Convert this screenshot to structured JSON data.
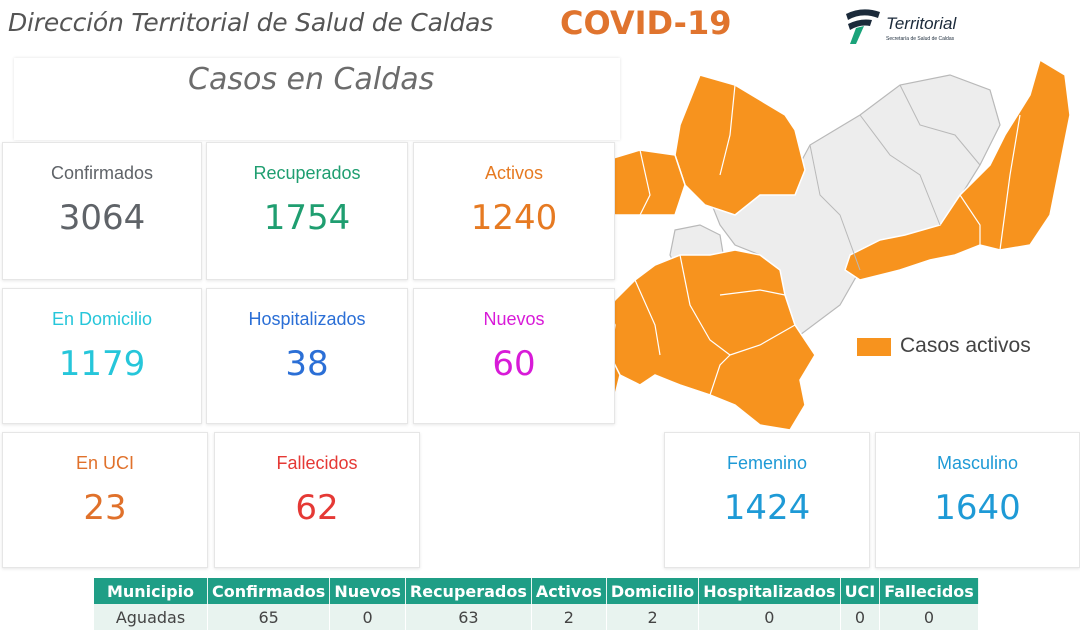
{
  "header": {
    "title": "Dirección Territorial de Salud de Caldas",
    "badge": "COVID-19",
    "logo_text": "Territorial",
    "logo_subtext": "Secretaría de Salud de Caldas"
  },
  "section_title": "Casos en Caldas",
  "stats": {
    "confirmados": {
      "label": "Confirmados",
      "value": "3064",
      "color": "#5f6368"
    },
    "recuperados": {
      "label": "Recuperados",
      "value": "1754",
      "color": "#1f9e70"
    },
    "activos": {
      "label": "Activos",
      "value": "1240",
      "color": "#e67a22"
    },
    "domicilio": {
      "label": "En Domicilio",
      "value": "1179",
      "color": "#26c6da"
    },
    "hospitalizados": {
      "label": "Hospitalizados",
      "value": "38",
      "color": "#2b6fd6"
    },
    "nuevos": {
      "label": "Nuevos",
      "value": "60",
      "color": "#d81bd8"
    },
    "uci": {
      "label": "En UCI",
      "value": "23",
      "color": "#e0712b"
    },
    "fallecidos": {
      "label": "Fallecidos",
      "value": "62",
      "color": "#e53935"
    },
    "femenino": {
      "label": "Femenino",
      "value": "1424",
      "color": "#1e9ad6"
    },
    "masculino": {
      "label": "Masculino",
      "value": "1640",
      "color": "#1e9ad6"
    }
  },
  "legend": {
    "label": "Casos activos",
    "color": "#f7931e"
  },
  "table": {
    "headers": [
      "Municipio",
      "Confirmados",
      "Nuevos",
      "Recuperados",
      "Activos",
      "Domicilio",
      "Hospitalizados",
      "UCI",
      "Fallecidos"
    ],
    "rows": [
      [
        "Aguadas",
        "65",
        "0",
        "63",
        "2",
        "2",
        "0",
        "0",
        "0"
      ]
    ]
  }
}
